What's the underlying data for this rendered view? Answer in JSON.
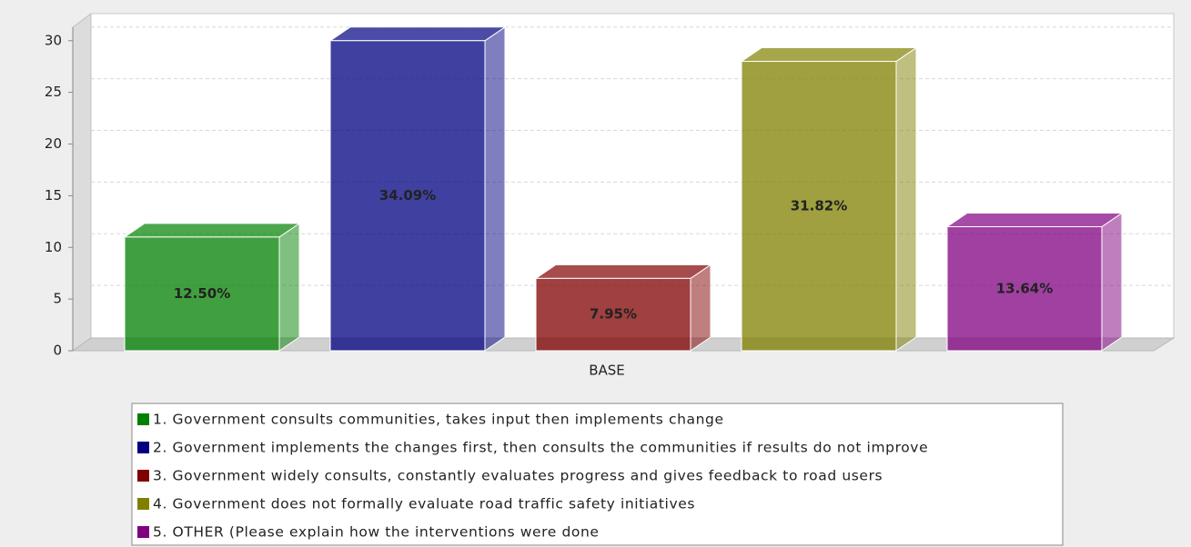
{
  "chart_data": {
    "type": "bar3d",
    "categories": [
      "BASE"
    ],
    "series": [
      {
        "name": "1. Government consults communities, takes input then implements change",
        "color": "#008000",
        "values": [
          11
        ],
        "share_labels": [
          "12.50%"
        ]
      },
      {
        "name": "2. Government implements the changes first, then consults the communities if results do not improve",
        "color": "#000080",
        "values": [
          30
        ],
        "share_labels": [
          "34.09%"
        ]
      },
      {
        "name": "3. Government widely consults, constantly evaluates progress and gives feedback to road users",
        "color": "#800000",
        "values": [
          7
        ],
        "share_labels": [
          "7.95%"
        ]
      },
      {
        "name": "4. Government does not formally evaluate road traffic safety initiatives",
        "color": "#808000",
        "values": [
          28
        ],
        "share_labels": [
          "31.82%"
        ]
      },
      {
        "name": "5. OTHER (Please explain how the interventions were done",
        "color": "#800080",
        "values": [
          12
        ],
        "share_labels": [
          "13.64%"
        ]
      }
    ],
    "ylim": [
      0,
      31.3
    ],
    "yticks": [
      0,
      5,
      10,
      15,
      20,
      25,
      30
    ],
    "grid": true
  }
}
